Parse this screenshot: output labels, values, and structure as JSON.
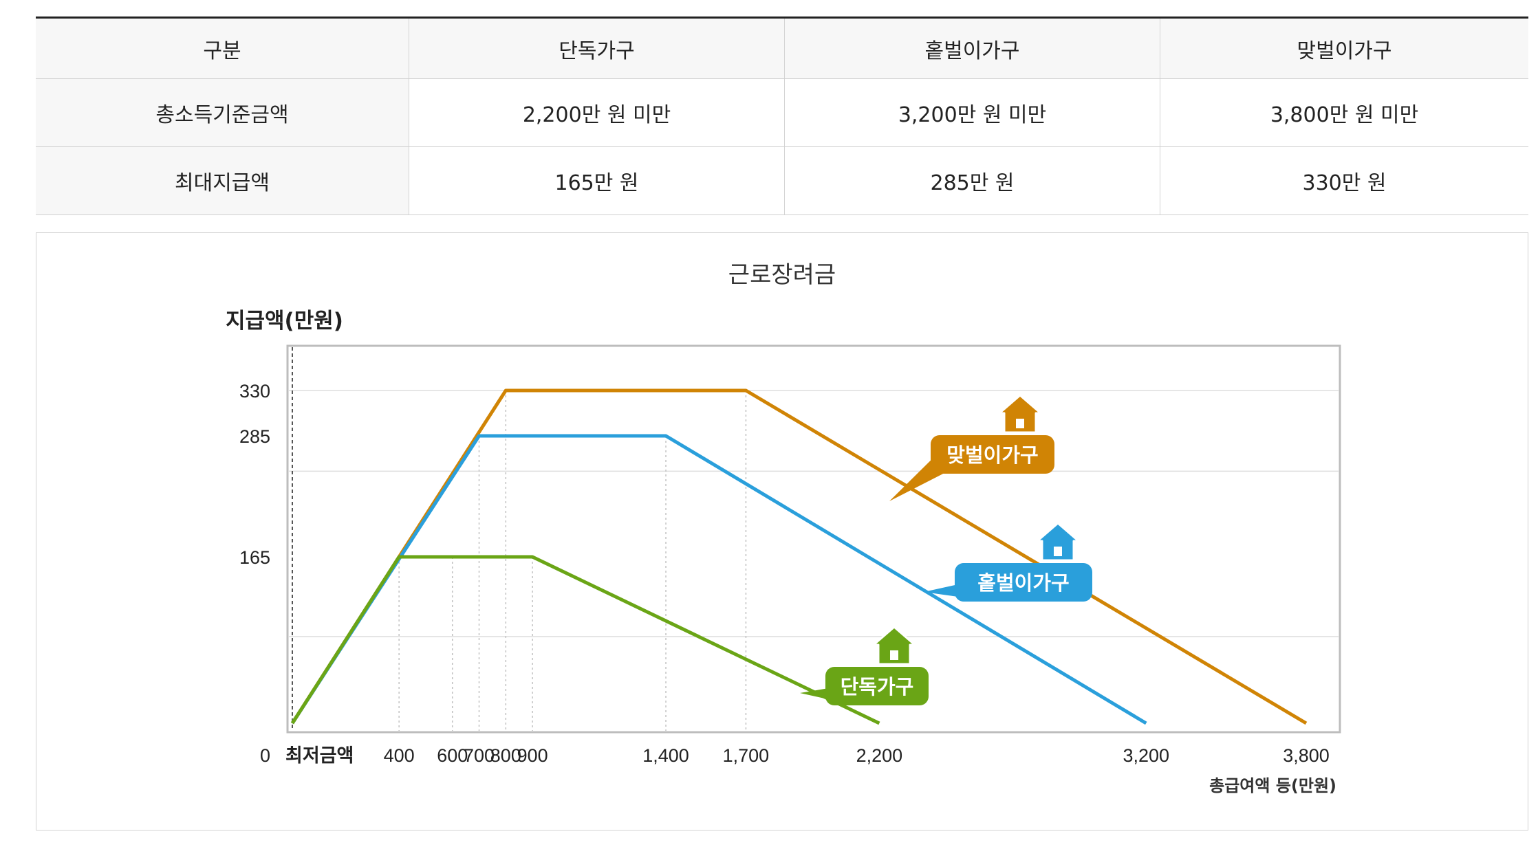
{
  "table": {
    "headers": [
      "구분",
      "단독가구",
      "홑벌이가구",
      "맞벌이가구"
    ],
    "rows": [
      [
        "총소득기준금액",
        "2,200만 원 미만",
        "3,200만 원 미만",
        "3,800만 원 미만"
      ],
      [
        "최대지급액",
        "165만 원",
        "285만 원",
        "330만 원"
      ]
    ]
  },
  "chart_data": {
    "type": "line",
    "title": "근로장려금",
    "ylabel": "지급액(만원)",
    "xlabel": "총급여액 등(만원)",
    "x_origin_label": "최저금액",
    "ylim": [
      0,
      330
    ],
    "xlim": [
      0,
      3800
    ],
    "y_ticks": [
      0,
      165,
      285,
      330
    ],
    "x_ticks": [
      400,
      600,
      700,
      800,
      900,
      1400,
      1700,
      2200,
      3200,
      3800
    ],
    "grid": true,
    "series": [
      {
        "name": "단독가구",
        "color": "#6aa516",
        "x": [
          0,
          400,
          900,
          2200
        ],
        "y": [
          0,
          165,
          165,
          0
        ]
      },
      {
        "name": "홑벌이가구",
        "color": "#2a9fdb",
        "x": [
          0,
          700,
          1400,
          3200
        ],
        "y": [
          0,
          285,
          285,
          0
        ]
      },
      {
        "name": "맞벌이가구",
        "color": "#d08405",
        "x": [
          0,
          800,
          1700,
          3800
        ],
        "y": [
          0,
          330,
          330,
          0
        ]
      }
    ],
    "icons": [
      "house-icon"
    ]
  }
}
